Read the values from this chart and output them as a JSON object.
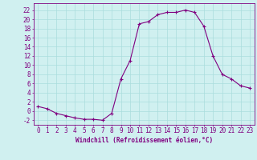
{
  "x": [
    0,
    1,
    2,
    3,
    4,
    5,
    6,
    7,
    8,
    9,
    10,
    11,
    12,
    13,
    14,
    15,
    16,
    17,
    18,
    19,
    20,
    21,
    22,
    23
  ],
  "y": [
    1,
    0.5,
    -0.5,
    -1,
    -1.5,
    -1.8,
    -1.8,
    -2,
    -0.5,
    7,
    11,
    19,
    19.5,
    21,
    21.5,
    21.5,
    22,
    21.5,
    18.5,
    12,
    8,
    7,
    5.5,
    5
  ],
  "line_color": "#800080",
  "marker_color": "#800080",
  "bg_color": "#d0f0f0",
  "grid_color": "#aadddd",
  "xlabel": "Windchill (Refroidissement éolien,°C)",
  "ylabel_ticks": [
    -2,
    0,
    2,
    4,
    6,
    8,
    10,
    12,
    14,
    16,
    18,
    20,
    22
  ],
  "xlim": [
    -0.5,
    23.5
  ],
  "ylim": [
    -3,
    23.5
  ],
  "xticks": [
    0,
    1,
    2,
    3,
    4,
    5,
    6,
    7,
    8,
    9,
    10,
    11,
    12,
    13,
    14,
    15,
    16,
    17,
    18,
    19,
    20,
    21,
    22,
    23
  ],
  "xlabel_fontsize": 5.5,
  "tick_fontsize": 5.5
}
